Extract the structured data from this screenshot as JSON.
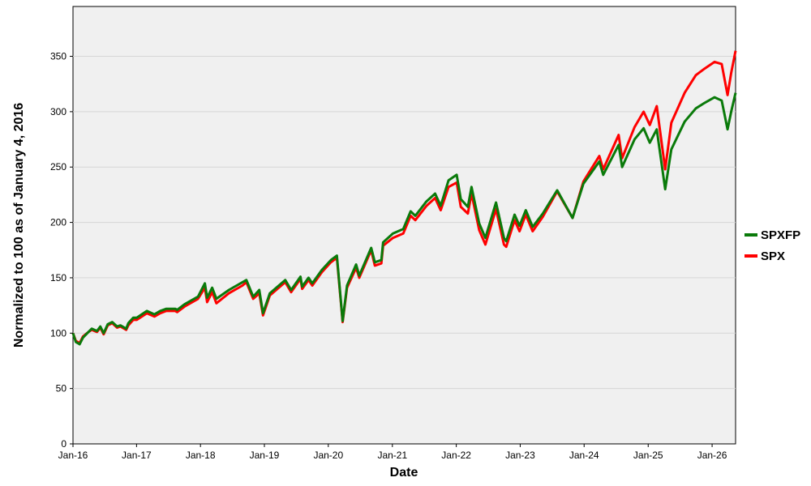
{
  "chart_data": {
    "type": "line",
    "title": "",
    "xlabel": "Date",
    "ylabel": "Normalized to 100 as of January 4, 2016",
    "x_ticks": [
      "Jan-16",
      "Jan-17",
      "Jan-18",
      "Jan-19",
      "Jan-20",
      "Jan-21",
      "Jan-22",
      "Jan-23",
      "Jan-24",
      "Jan-25",
      "Jan-26"
    ],
    "y_ticks": [
      0,
      50,
      100,
      150,
      200,
      250,
      300,
      350
    ],
    "xlim": [
      "2016-01-04",
      "2026-05-15"
    ],
    "ylim": [
      0,
      395
    ],
    "grid": "horizontal",
    "background": "#f0f0f0",
    "legend_position": "right",
    "series": [
      {
        "name": "SPX",
        "color": "#ff0000",
        "points": [
          [
            "2016-01-04",
            100
          ],
          [
            "2016-01-20",
            93
          ],
          [
            "2016-02-11",
            91
          ],
          [
            "2016-03-01",
            97
          ],
          [
            "2016-04-01",
            101
          ],
          [
            "2016-04-20",
            103
          ],
          [
            "2016-05-20",
            101
          ],
          [
            "2016-06-08",
            105
          ],
          [
            "2016-06-27",
            99
          ],
          [
            "2016-07-20",
            107
          ],
          [
            "2016-08-15",
            109
          ],
          [
            "2016-09-12",
            105
          ],
          [
            "2016-10-01",
            106
          ],
          [
            "2016-11-03",
            103
          ],
          [
            "2016-11-15",
            107
          ],
          [
            "2016-12-13",
            112
          ],
          [
            "2017-01-02",
            112
          ],
          [
            "2017-03-01",
            118
          ],
          [
            "2017-04-13",
            115
          ],
          [
            "2017-05-16",
            118
          ],
          [
            "2017-06-20",
            120
          ],
          [
            "2017-08-10",
            120
          ],
          [
            "2017-08-21",
            119
          ],
          [
            "2017-10-02",
            124
          ],
          [
            "2017-12-18",
            131
          ],
          [
            "2018-01-26",
            141
          ],
          [
            "2018-02-08",
            128
          ],
          [
            "2018-03-09",
            137
          ],
          [
            "2018-04-02",
            127
          ],
          [
            "2018-06-12",
            136
          ],
          [
            "2018-08-29",
            143
          ],
          [
            "2018-09-20",
            146
          ],
          [
            "2018-10-29",
            131
          ],
          [
            "2018-12-03",
            136
          ],
          [
            "2018-12-24",
            116
          ],
          [
            "2019-02-01",
            134
          ],
          [
            "2019-04-30",
            146
          ],
          [
            "2019-06-03",
            137
          ],
          [
            "2019-07-26",
            149
          ],
          [
            "2019-08-05",
            140
          ],
          [
            "2019-09-10",
            148
          ],
          [
            "2019-10-02",
            143
          ],
          [
            "2019-11-25",
            155
          ],
          [
            "2020-01-16",
            164
          ],
          [
            "2020-02-19",
            168
          ],
          [
            "2020-03-23",
            110
          ],
          [
            "2020-04-17",
            141
          ],
          [
            "2020-06-08",
            159
          ],
          [
            "2020-06-26",
            150
          ],
          [
            "2020-09-02",
            175
          ],
          [
            "2020-09-23",
            161
          ],
          [
            "2020-10-30",
            163
          ],
          [
            "2020-11-09",
            179
          ],
          [
            "2021-01-04",
            186
          ],
          [
            "2021-03-04",
            190
          ],
          [
            "2021-04-15",
            206
          ],
          [
            "2021-05-12",
            202
          ],
          [
            "2021-07-15",
            215
          ],
          [
            "2021-09-02",
            222
          ],
          [
            "2021-10-04",
            211
          ],
          [
            "2021-11-18",
            232
          ],
          [
            "2022-01-03",
            236
          ],
          [
            "2022-01-27",
            214
          ],
          [
            "2022-03-08",
            208
          ],
          [
            "2022-03-29",
            226
          ],
          [
            "2022-05-12",
            193
          ],
          [
            "2022-06-16",
            180
          ],
          [
            "2022-08-16",
            212
          ],
          [
            "2022-09-30",
            180
          ],
          [
            "2022-10-13",
            178
          ],
          [
            "2022-11-30",
            202
          ],
          [
            "2022-12-28",
            192
          ],
          [
            "2023-02-02",
            207
          ],
          [
            "2023-03-13",
            192
          ],
          [
            "2023-05-10",
            205
          ],
          [
            "2023-07-31",
            228
          ],
          [
            "2023-10-27",
            204
          ],
          [
            "2023-12-28",
            237
          ],
          [
            "2024-03-28",
            260
          ],
          [
            "2024-04-19",
            248
          ],
          [
            "2024-07-16",
            279
          ],
          [
            "2024-08-05",
            258
          ],
          [
            "2024-10-15",
            286
          ],
          [
            "2024-12-06",
            300
          ],
          [
            "2025-01-10",
            288
          ],
          [
            "2025-02-19",
            305
          ],
          [
            "2025-04-08",
            248
          ],
          [
            "2025-05-13",
            290
          ],
          [
            "2025-07-28",
            317
          ],
          [
            "2025-09-30",
            333
          ],
          [
            "2025-11-20",
            339
          ],
          [
            "2026-01-15",
            345
          ],
          [
            "2026-02-25",
            343
          ],
          [
            "2026-03-30",
            315
          ],
          [
            "2026-04-20",
            335
          ],
          [
            "2026-05-15",
            355
          ]
        ]
      },
      {
        "name": "SPXFP",
        "color": "#0a7a0a",
        "points": [
          [
            "2016-01-04",
            100
          ],
          [
            "2016-01-20",
            92
          ],
          [
            "2016-02-11",
            90
          ],
          [
            "2016-03-01",
            96
          ],
          [
            "2016-04-01",
            101
          ],
          [
            "2016-04-20",
            104
          ],
          [
            "2016-05-20",
            102
          ],
          [
            "2016-06-08",
            106
          ],
          [
            "2016-06-27",
            100
          ],
          [
            "2016-07-20",
            108
          ],
          [
            "2016-08-15",
            110
          ],
          [
            "2016-09-12",
            106
          ],
          [
            "2016-10-01",
            107
          ],
          [
            "2016-11-03",
            104
          ],
          [
            "2016-11-15",
            109
          ],
          [
            "2016-12-13",
            114
          ],
          [
            "2017-01-02",
            114
          ],
          [
            "2017-03-01",
            120
          ],
          [
            "2017-04-13",
            117
          ],
          [
            "2017-05-16",
            120
          ],
          [
            "2017-06-20",
            122
          ],
          [
            "2017-08-10",
            122
          ],
          [
            "2017-08-21",
            121
          ],
          [
            "2017-10-02",
            126
          ],
          [
            "2017-12-18",
            133
          ],
          [
            "2018-01-26",
            145
          ],
          [
            "2018-02-08",
            132
          ],
          [
            "2018-03-09",
            141
          ],
          [
            "2018-04-02",
            131
          ],
          [
            "2018-06-12",
            139
          ],
          [
            "2018-08-29",
            146
          ],
          [
            "2018-09-20",
            148
          ],
          [
            "2018-10-29",
            133
          ],
          [
            "2018-12-03",
            139
          ],
          [
            "2018-12-24",
            118
          ],
          [
            "2019-02-01",
            136
          ],
          [
            "2019-04-30",
            148
          ],
          [
            "2019-06-03",
            139
          ],
          [
            "2019-07-26",
            151
          ],
          [
            "2019-08-05",
            142
          ],
          [
            "2019-09-10",
            150
          ],
          [
            "2019-10-02",
            145
          ],
          [
            "2019-11-25",
            157
          ],
          [
            "2020-01-16",
            166
          ],
          [
            "2020-02-19",
            170
          ],
          [
            "2020-03-23",
            111
          ],
          [
            "2020-04-17",
            143
          ],
          [
            "2020-06-08",
            162
          ],
          [
            "2020-06-26",
            152
          ],
          [
            "2020-09-02",
            177
          ],
          [
            "2020-09-23",
            164
          ],
          [
            "2020-10-30",
            166
          ],
          [
            "2020-11-09",
            182
          ],
          [
            "2021-01-04",
            190
          ],
          [
            "2021-03-04",
            194
          ],
          [
            "2021-04-15",
            210
          ],
          [
            "2021-05-12",
            206
          ],
          [
            "2021-07-15",
            219
          ],
          [
            "2021-09-02",
            226
          ],
          [
            "2021-10-04",
            215
          ],
          [
            "2021-11-18",
            238
          ],
          [
            "2022-01-03",
            243
          ],
          [
            "2022-01-27",
            221
          ],
          [
            "2022-03-08",
            214
          ],
          [
            "2022-03-29",
            232
          ],
          [
            "2022-05-12",
            199
          ],
          [
            "2022-06-16",
            186
          ],
          [
            "2022-08-16",
            218
          ],
          [
            "2022-09-30",
            186
          ],
          [
            "2022-10-13",
            183
          ],
          [
            "2022-11-30",
            207
          ],
          [
            "2022-12-28",
            197
          ],
          [
            "2023-02-02",
            211
          ],
          [
            "2023-03-13",
            196
          ],
          [
            "2023-05-10",
            208
          ],
          [
            "2023-07-31",
            229
          ],
          [
            "2023-10-27",
            204
          ],
          [
            "2023-12-28",
            235
          ],
          [
            "2024-03-28",
            255
          ],
          [
            "2024-04-19",
            243
          ],
          [
            "2024-07-16",
            270
          ],
          [
            "2024-08-05",
            250
          ],
          [
            "2024-10-15",
            275
          ],
          [
            "2024-12-06",
            285
          ],
          [
            "2025-01-10",
            272
          ],
          [
            "2025-02-19",
            284
          ],
          [
            "2025-04-08",
            230
          ],
          [
            "2025-05-13",
            266
          ],
          [
            "2025-07-28",
            291
          ],
          [
            "2025-09-30",
            303
          ],
          [
            "2025-11-20",
            308
          ],
          [
            "2026-01-15",
            313
          ],
          [
            "2026-02-25",
            310
          ],
          [
            "2026-03-30",
            284
          ],
          [
            "2026-04-20",
            300
          ],
          [
            "2026-05-15",
            317
          ]
        ]
      }
    ]
  },
  "legend": [
    {
      "name": "SPXFP",
      "color": "#0a7a0a"
    },
    {
      "name": "SPX",
      "color": "#ff0000"
    }
  ]
}
